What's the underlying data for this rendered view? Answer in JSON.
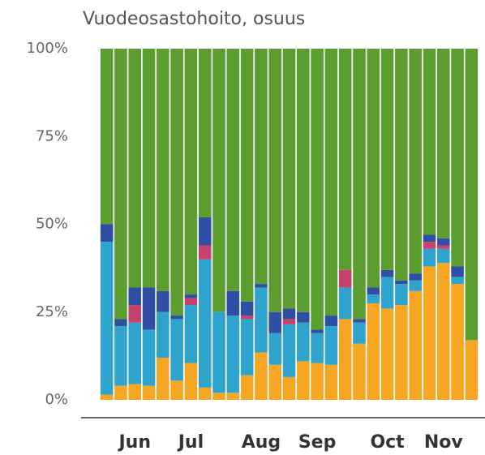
{
  "chart_data": {
    "type": "stacked_bar",
    "title": "Vuodeosastohoito, osuus",
    "categories": [
      null,
      null,
      "Jun",
      null,
      null,
      null,
      "Jul",
      null,
      null,
      null,
      null,
      "Aug",
      null,
      null,
      null,
      "Sep",
      null,
      null,
      null,
      null,
      "Oct",
      null,
      null,
      null,
      "Nov",
      null,
      null
    ],
    "series": [
      {
        "color": "#f5a623",
        "values": [
          1.5,
          4,
          4.5,
          4,
          12,
          5.5,
          10.5,
          3.5,
          2,
          2,
          7,
          13.5,
          10,
          6.5,
          11,
          10.5,
          10,
          23,
          16,
          27.5,
          26,
          27,
          31,
          38,
          39,
          33,
          17
        ]
      },
      {
        "color": "#2ea3cc",
        "values": [
          43.5,
          17,
          17.5,
          16,
          13,
          17.5,
          16.5,
          36.5,
          23,
          22,
          16,
          18.5,
          9,
          15,
          11,
          8.5,
          11,
          9,
          6,
          2.5,
          9,
          6,
          3,
          5,
          4,
          2,
          0
        ]
      },
      {
        "color": "#c8406e",
        "values": [
          0,
          0,
          5,
          0,
          0,
          0,
          2,
          4,
          0,
          0,
          1,
          0,
          0,
          1.5,
          0,
          0,
          0,
          5,
          0,
          0,
          0,
          0,
          0,
          2,
          1,
          0,
          0
        ]
      },
      {
        "color": "#2e4fa3",
        "values": [
          5,
          2,
          5,
          12,
          6,
          1,
          1,
          8,
          0,
          7,
          4,
          1,
          6,
          3,
          3,
          1,
          3,
          0,
          1,
          2,
          2,
          1,
          2,
          2,
          2,
          3,
          0
        ]
      },
      {
        "color": "#5a9e2f",
        "values": [
          50,
          77,
          68,
          68,
          69,
          76,
          70,
          48,
          75,
          69,
          72,
          67,
          75,
          74,
          75,
          80,
          76,
          63,
          77,
          68,
          63,
          66,
          64,
          53,
          54,
          62,
          83
        ]
      }
    ],
    "ylim": [
      0,
      100
    ],
    "yticks": [
      {
        "value": 0,
        "label": "0%"
      },
      {
        "value": 25,
        "label": "25%"
      },
      {
        "value": 50,
        "label": "50%"
      },
      {
        "value": 75,
        "label": "75%"
      },
      {
        "value": 100,
        "label": "100%"
      }
    ]
  }
}
